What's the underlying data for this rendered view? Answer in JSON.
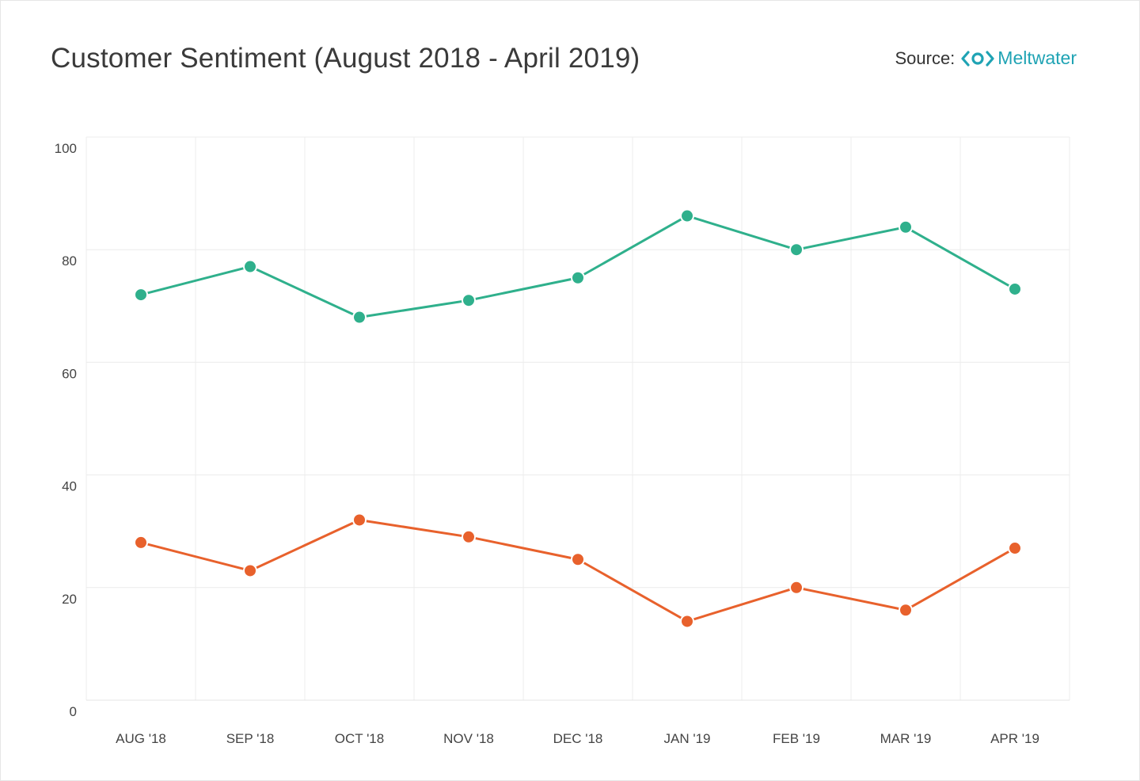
{
  "header": {
    "title": "Customer Sentiment (August 2018 - April 2019)",
    "source_label": "Source:",
    "source_brand": "Meltwater",
    "source_brand_icon": "meltwater-logo-icon"
  },
  "colors": {
    "positive": "#2fb08c",
    "negative": "#e8612c",
    "grid": "#ececec",
    "brand": "#1fa3b4"
  },
  "chart_data": {
    "type": "line",
    "title": "Customer Sentiment (August 2018 - April 2019)",
    "xlabel": "",
    "ylabel": "",
    "categories": [
      "AUG '18",
      "SEP '18",
      "OCT '18",
      "NOV '18",
      "DEC '18",
      "JAN '19",
      "FEB '19",
      "MAR '19",
      "APR '19"
    ],
    "y_ticks": [
      0,
      20,
      40,
      60,
      80,
      100
    ],
    "ylim": [
      0,
      100
    ],
    "grid": true,
    "legend": "none",
    "series": [
      {
        "color": "#2fb08c",
        "values": [
          72,
          77,
          68,
          71,
          75,
          86,
          80,
          84,
          73
        ]
      },
      {
        "color": "#e8612c",
        "values": [
          28,
          23,
          32,
          29,
          25,
          14,
          20,
          16,
          27
        ]
      }
    ]
  }
}
